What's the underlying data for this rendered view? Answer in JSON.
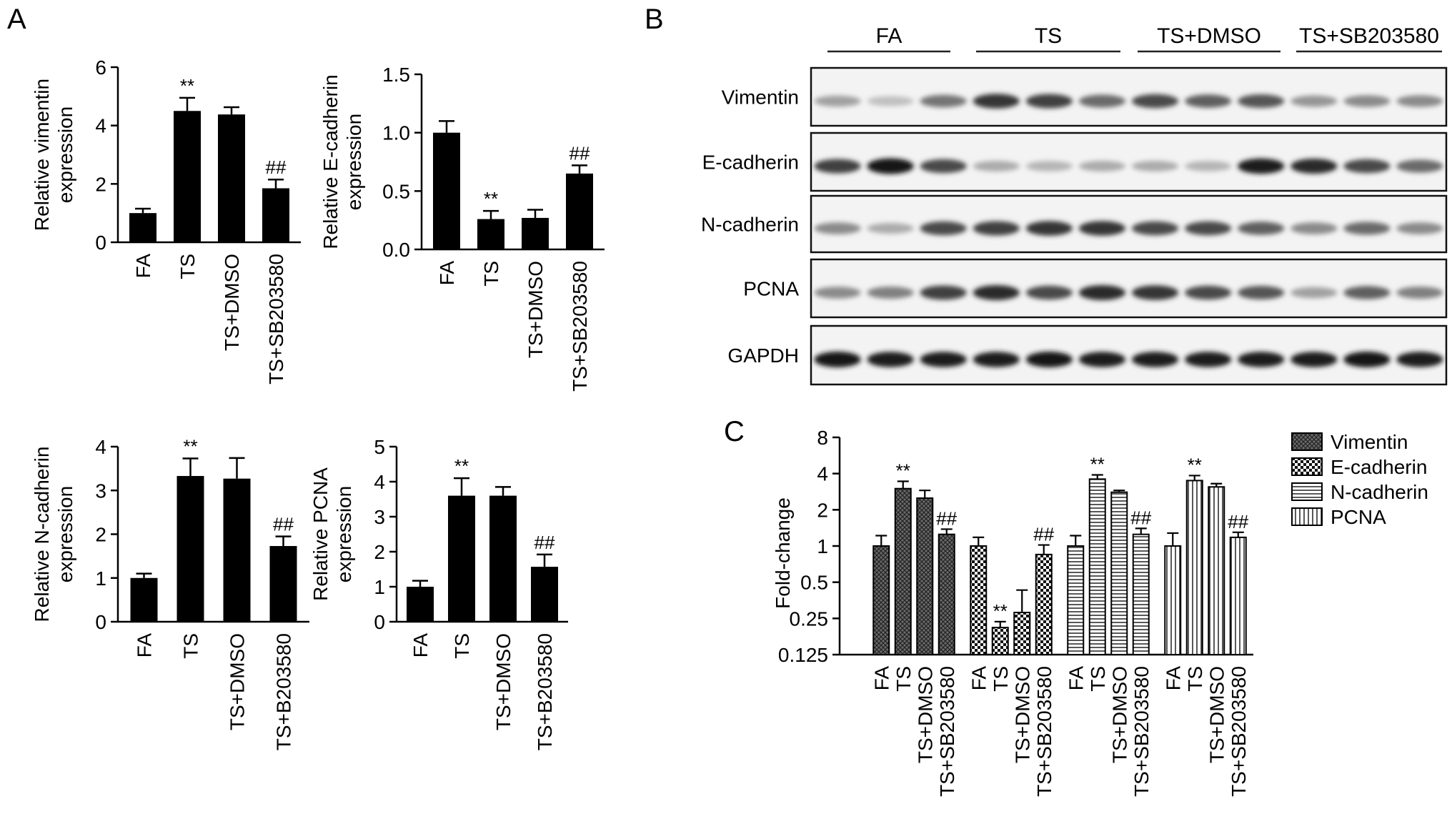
{
  "figure": {
    "panels": [
      {
        "letter": "A"
      },
      {
        "letter": "B"
      },
      {
        "letter": "C"
      }
    ]
  },
  "chart_data": [
    {
      "id": "vimentin",
      "type": "bar",
      "categories": [
        "FA",
        "TS",
        "TS+DMSO",
        "TS+SB203580"
      ],
      "values": [
        1.0,
        4.5,
        4.38,
        1.85
      ],
      "errors": [
        0.15,
        0.45,
        0.25,
        0.3
      ],
      "annotations": [
        "",
        "**",
        "",
        "##"
      ],
      "ylabel": [
        "Relative vimentin",
        "expression"
      ],
      "ylim": [
        0,
        6
      ],
      "yticks": [
        0,
        2,
        4,
        6
      ],
      "tick_labels": [
        "0",
        "2",
        "4",
        "6"
      ]
    },
    {
      "id": "ecadherin",
      "type": "bar",
      "categories": [
        "FA",
        "TS",
        "TS+DMSO",
        "TS+SB203580"
      ],
      "values": [
        1.0,
        0.26,
        0.27,
        0.65
      ],
      "errors": [
        0.1,
        0.07,
        0.07,
        0.07
      ],
      "annotations": [
        "",
        "**",
        "",
        "##"
      ],
      "ylabel": [
        "Relative E-cadherin",
        "expression"
      ],
      "ylim": [
        0,
        1.5
      ],
      "yticks": [
        0,
        0.5,
        1.0,
        1.5
      ],
      "tick_labels": [
        "0.0",
        "0.5",
        "1.0",
        "1.5"
      ]
    },
    {
      "id": "ncadherin",
      "type": "bar",
      "categories": [
        "FA",
        "TS",
        "TS+DMSO",
        "TS+B203580"
      ],
      "values": [
        1.0,
        3.33,
        3.27,
        1.73
      ],
      "errors": [
        0.1,
        0.4,
        0.47,
        0.22
      ],
      "annotations": [
        "",
        "**",
        "",
        "##"
      ],
      "ylabel": [
        "Relative N-cadherin",
        "expression"
      ],
      "ylim": [
        0,
        4
      ],
      "yticks": [
        0,
        1,
        2,
        3,
        4
      ],
      "tick_labels": [
        "0",
        "1",
        "2",
        "3",
        "4"
      ]
    },
    {
      "id": "pcna",
      "type": "bar",
      "categories": [
        "FA",
        "TS",
        "TS+DMSO",
        "TS+B203580"
      ],
      "values": [
        1.0,
        3.6,
        3.6,
        1.57
      ],
      "errors": [
        0.17,
        0.5,
        0.25,
        0.35
      ],
      "annotations": [
        "",
        "**",
        "",
        "##"
      ],
      "ylabel": [
        "Relative PCNA",
        "expression"
      ],
      "ylim": [
        0,
        5
      ],
      "yticks": [
        0,
        1,
        2,
        3,
        4,
        5
      ],
      "tick_labels": [
        "0",
        "1",
        "2",
        "3",
        "4",
        "5"
      ]
    },
    {
      "id": "foldchange",
      "type": "bar",
      "scale": "log2",
      "ylabel": "Fold-change",
      "ylim": [
        0.125,
        8
      ],
      "yticks": [
        0.125,
        0.25,
        0.5,
        1,
        2,
        4,
        8
      ],
      "tick_labels": [
        "0.125",
        "0.25",
        "0.5",
        "1",
        "2",
        "4",
        "8"
      ],
      "categories": [
        "FA",
        "TS",
        "TS+DMSO",
        "TS+SB203580"
      ],
      "legend_position": "right",
      "series": [
        {
          "name": "Vimentin",
          "pattern": "crosshatch",
          "values": [
            1.0,
            3.0,
            2.5,
            1.25
          ],
          "errors_up": [
            1.22,
            3.45,
            2.9,
            1.38
          ],
          "annotations": [
            "",
            "**",
            "",
            "##"
          ]
        },
        {
          "name": "E-cadherin",
          "pattern": "checker",
          "values": [
            1.0,
            0.21,
            0.28,
            0.85
          ],
          "errors_up": [
            1.18,
            0.235,
            0.43,
            1.02
          ],
          "annotations": [
            "",
            "**",
            "",
            "##"
          ]
        },
        {
          "name": "N-cadherin",
          "pattern": "horizontal",
          "values": [
            1.0,
            3.6,
            2.8,
            1.25
          ],
          "errors_up": [
            1.22,
            3.9,
            2.9,
            1.4
          ],
          "annotations": [
            "",
            "**",
            "",
            "##"
          ]
        },
        {
          "name": "PCNA",
          "pattern": "vertical",
          "values": [
            1.0,
            3.5,
            3.1,
            1.18
          ],
          "errors_up": [
            1.28,
            3.85,
            3.3,
            1.3
          ],
          "annotations": [
            "",
            "**",
            "",
            "##"
          ]
        }
      ]
    }
  ],
  "blot": {
    "groups": [
      "FA",
      "TS",
      "TS+DMSO",
      "TS+SB203580"
    ],
    "rows": [
      {
        "label": "Vimentin",
        "intensity": [
          0.35,
          0.2,
          0.55,
          0.85,
          0.8,
          0.6,
          0.75,
          0.65,
          0.7,
          0.4,
          0.45,
          0.45
        ]
      },
      {
        "label": "E-cadherin",
        "intensity": [
          0.8,
          1.0,
          0.75,
          0.3,
          0.25,
          0.3,
          0.3,
          0.25,
          0.95,
          0.9,
          0.75,
          0.6
        ]
      },
      {
        "label": "N-cadherin",
        "intensity": [
          0.45,
          0.3,
          0.75,
          0.8,
          0.85,
          0.85,
          0.75,
          0.75,
          0.65,
          0.45,
          0.6,
          0.45
        ]
      },
      {
        "label": "PCNA",
        "intensity": [
          0.45,
          0.5,
          0.8,
          0.9,
          0.75,
          0.9,
          0.85,
          0.75,
          0.7,
          0.35,
          0.65,
          0.5
        ]
      },
      {
        "label": "GAPDH",
        "intensity": [
          1.0,
          0.95,
          0.95,
          0.95,
          1.0,
          0.95,
          0.95,
          0.95,
          0.95,
          0.95,
          1.0,
          0.95
        ]
      }
    ]
  }
}
